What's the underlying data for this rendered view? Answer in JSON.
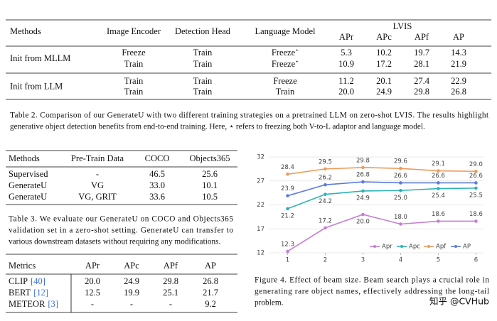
{
  "table2": {
    "header": [
      "Methods",
      "Image Encoder",
      "Detection Head",
      "Language Model"
    ],
    "group": "LVIS",
    "subheader": [
      "APr",
      "APc",
      "APf",
      "AP"
    ],
    "groups": [
      {
        "method": "Init from MLLM",
        "rows": [
          [
            {
              "text": "Freeze",
              "color": "#3f9fd8"
            },
            {
              "text": "Train",
              "color": "#c0621f"
            },
            {
              "text": "Freeze",
              "color": "#3f9fd8",
              "sup": "⋆"
            },
            "5.3",
            "10.2",
            "19.7",
            "14.3"
          ],
          [
            {
              "text": "Train",
              "color": "#c0621f"
            },
            {
              "text": "Train",
              "color": "#c0621f"
            },
            {
              "text": "Freeze",
              "color": "#3f9fd8",
              "sup": "⋆"
            },
            "10.9",
            "17.2",
            "28.1",
            "21.9"
          ]
        ]
      },
      {
        "method": "Init from LLM",
        "rows": [
          [
            {
              "text": "Train",
              "color": "#c0621f"
            },
            {
              "text": "Train",
              "color": "#c0621f"
            },
            {
              "text": "Freeze",
              "color": "#3f9fd8"
            },
            "11.2",
            "20.1",
            "27.4",
            "22.9"
          ],
          [
            {
              "text": "Train",
              "color": "#c0621f"
            },
            {
              "text": "Train",
              "color": "#c0621f"
            },
            {
              "text": "Train",
              "color": "#c0621f"
            },
            "20.0",
            "24.9",
            "29.8",
            "26.8"
          ]
        ]
      }
    ],
    "caption": [
      "Table 2. Comparison of our GenerateU with two different training strategies on a pretrained LLM on zero-shot LVIS. The results highlight",
      "generative object detection benefits from end-to-end training. Here, ⋆ refers to freezing both V-to-L adaptor and language model."
    ]
  },
  "table3": {
    "header": [
      "Methods",
      "Pre-Train Data",
      "COCO",
      "Objects365"
    ],
    "rows": [
      [
        "Supervised",
        "-",
        "46.5",
        "25.6"
      ],
      [
        "GenerateU",
        "VG",
        "33.0",
        "10.1"
      ],
      [
        "GenerateU",
        "VG, GRIT",
        "33.6",
        "10.5"
      ]
    ],
    "caption": [
      "Table 3.  We evaluate our GenerateU on COCO and Objects365",
      "validation set in a zero-shot setting.  GenerateU can transfer to",
      "various downstream datasets without requiring any modifications."
    ]
  },
  "table4": {
    "header": [
      "Metrics",
      "APr",
      "APc",
      "APf",
      "AP"
    ],
    "rows": [
      [
        {
          "name": "CLIP",
          "ref": "[40]"
        },
        "20.0",
        "24.9",
        "29.8",
        "26.8"
      ],
      [
        {
          "name": "BERT",
          "ref": "[12]"
        },
        "12.5",
        "19.9",
        "25.1",
        "21.7"
      ],
      [
        {
          "name": "METEOR",
          "ref": "[3]"
        },
        "-",
        "-",
        "-",
        "9.2"
      ]
    ]
  },
  "chart_data": {
    "type": "line",
    "x": [
      1,
      2,
      3,
      4,
      5,
      6
    ],
    "xlim": [
      0.5,
      6.2
    ],
    "xticks": [
      1,
      2,
      3,
      4,
      5,
      6
    ],
    "ylim": [
      12,
      32
    ],
    "yticks": [
      12,
      17,
      22,
      27,
      32
    ],
    "grid": true,
    "legend": "lower right",
    "series": [
      {
        "name": "Apr",
        "color": "#c77dd7",
        "values": [
          12.3,
          17.2,
          20.0,
          18.0,
          18.6,
          18.6
        ],
        "value_labels": [
          "12.3",
          "17.2",
          "20.0",
          "18.0",
          "18.6",
          "18.6"
        ]
      },
      {
        "name": "Apc",
        "color": "#2bb3b8",
        "values": [
          21.2,
          24.2,
          24.9,
          25.0,
          25.4,
          25.5
        ],
        "value_labels": [
          "21.2",
          "24.2",
          "24.9",
          "25.0",
          "25.4",
          "25.5"
        ]
      },
      {
        "name": "Apf",
        "color": "#ee9a5a",
        "values": [
          28.4,
          29.5,
          29.8,
          29.6,
          29.1,
          29.0
        ],
        "value_labels": [
          "28.4",
          "29.5",
          "29.8",
          "29.6",
          "29.1",
          "29.0"
        ]
      },
      {
        "name": "AP",
        "color": "#5c7bd9",
        "values": [
          23.9,
          26.2,
          26.8,
          26.6,
          26.6,
          26.6
        ],
        "value_labels": [
          "23.9",
          "26.2",
          "26.8",
          "26.6",
          "26.6",
          "26.6"
        ]
      }
    ],
    "caption": [
      "Figure 4. Effect of beam size. Beam search plays a crucial role in",
      "generating rare object names, effectively addressing the long-tail",
      "problem."
    ]
  },
  "watermark": "知乎 @CVHub"
}
